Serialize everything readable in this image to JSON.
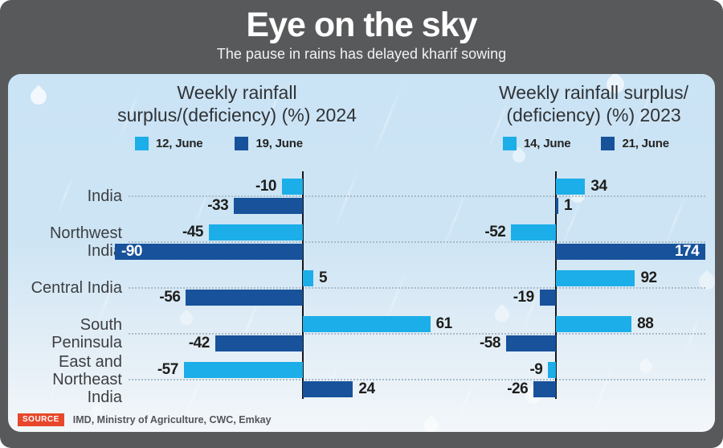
{
  "header": {
    "title": "Eye on the sky",
    "subtitle": "The pause in rains has delayed kharif sowing"
  },
  "source": {
    "badge": "SOURCE",
    "text": "IMD, Ministry of Agriculture, CWC, Emkay"
  },
  "colors": {
    "light_blue": "#1caee8",
    "dark_blue": "#17529b",
    "header_bg": "#58595b",
    "panel_bg_top": "#cae3f5",
    "panel_bg_bottom": "#f3f7fa",
    "badge_red": "#e8472b",
    "value_text": "#1e1e1c"
  },
  "chart_data": [
    {
      "type": "bar",
      "orientation": "horizontal",
      "title": "Weekly rainfall surplus/(deficiency) (%) 2024",
      "title_lines": [
        "Weekly rainfall",
        "surplus/(deficiency) (%) 2024"
      ],
      "legend": [
        "12, June",
        "19, June"
      ],
      "legend_position": "top",
      "unit": "%",
      "xlim": [
        -95,
        70
      ],
      "grid": "dotted horizontal row separators",
      "categories": [
        "India",
        "Northwest India",
        "Central India",
        "South Peninsula",
        "East and Northeast India"
      ],
      "category_lines": [
        [
          "India"
        ],
        [
          "Northwest",
          "India"
        ],
        [
          "Central India"
        ],
        [
          "South",
          "Peninsula"
        ],
        [
          "East and",
          "Northeast",
          "India"
        ]
      ],
      "series": [
        {
          "name": "12, June",
          "color_key": "light_blue",
          "values": [
            -10,
            -45,
            5,
            61,
            -57
          ],
          "inside_label_indices": []
        },
        {
          "name": "19, June",
          "color_key": "dark_blue",
          "values": [
            -33,
            -90,
            -56,
            -42,
            24
          ],
          "inside_label_indices": [
            1
          ]
        }
      ]
    },
    {
      "type": "bar",
      "orientation": "horizontal",
      "title": "Weekly rainfall surplus/(deficiency) (%) 2023",
      "title_lines": [
        "Weekly rainfall surplus/",
        "(deficiency) (%) 2023"
      ],
      "legend": [
        "14, June",
        "21, June"
      ],
      "legend_position": "top",
      "unit": "%",
      "xlim": [
        -65,
        185
      ],
      "grid": "dotted horizontal row separators",
      "categories": [
        "India",
        "Northwest India",
        "Central India",
        "South Peninsula",
        "East and Northeast India"
      ],
      "series": [
        {
          "name": "14, June",
          "color_key": "light_blue",
          "values": [
            34,
            -52,
            92,
            88,
            -9
          ],
          "inside_label_indices": []
        },
        {
          "name": "21, June",
          "color_key": "dark_blue",
          "values": [
            1,
            174,
            -19,
            -58,
            -26
          ],
          "inside_label_indices": [
            1
          ]
        }
      ]
    }
  ]
}
